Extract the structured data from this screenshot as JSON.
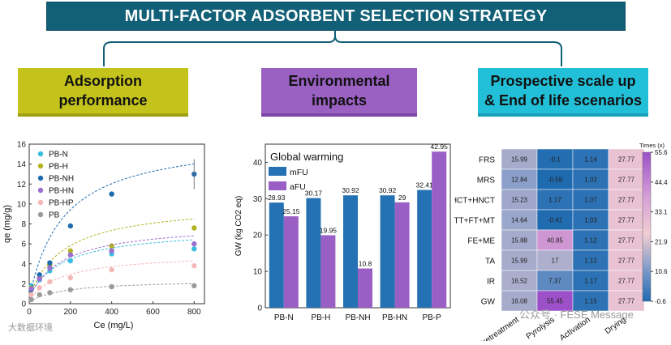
{
  "header": {
    "title": "MULTI-FACTOR ADSORBENT SELECTION STRATEGY",
    "boxes": [
      {
        "line1": "Adsorption",
        "line2": "performance"
      },
      {
        "line1": "Environmental",
        "line2": "impacts"
      },
      {
        "line1": "Prospective scale up",
        "line2": "& End of life scenarios"
      }
    ]
  },
  "colors": {
    "banner": "#126077",
    "box_yellow": "#c4c31c",
    "box_purple": "#9a61c3",
    "box_cyan": "#22c0d8",
    "bar_mfu": "#2472b3",
    "bar_afu": "#9a5fc4"
  },
  "chart_data": [
    {
      "type": "scatter",
      "title": "",
      "xlabel": "Ce (mg/L)",
      "ylabel": "qe (mg/g)",
      "xlim": [
        0,
        850
      ],
      "ylim": [
        0,
        16
      ],
      "xticks": [
        "0",
        "200",
        "400",
        "600",
        "800"
      ],
      "yticks": [
        "0",
        "2",
        "4",
        "6",
        "8",
        "10",
        "12",
        "14",
        "16"
      ],
      "legend": "top-left",
      "series": [
        {
          "name": "PB-N",
          "color": "#3bbde0",
          "x": [
            10,
            50,
            100,
            200,
            400,
            800
          ],
          "y": [
            1.8,
            2.4,
            3.3,
            4.3,
            5.0,
            5.5
          ]
        },
        {
          "name": "PB-H",
          "color": "#b3b321",
          "x": [
            10,
            50,
            100,
            200,
            400,
            800
          ],
          "y": [
            1.6,
            2.6,
            3.9,
            5.3,
            5.8,
            7.6
          ]
        },
        {
          "name": "PB-NH",
          "color": "#1f6bb0",
          "x": [
            10,
            50,
            100,
            200,
            400,
            800
          ],
          "y": [
            1.4,
            2.9,
            4.1,
            7.8,
            11.0,
            13.0
          ]
        },
        {
          "name": "PB-HN",
          "color": "#9a6fd0",
          "x": [
            10,
            50,
            100,
            200,
            400,
            800
          ],
          "y": [
            1.5,
            2.5,
            3.6,
            4.9,
            5.3,
            6.0
          ]
        },
        {
          "name": "PB-HP",
          "color": "#f4b8b8",
          "x": [
            10,
            50,
            100,
            200,
            400,
            800
          ],
          "y": [
            0.9,
            1.6,
            2.2,
            2.6,
            3.4,
            3.8
          ]
        },
        {
          "name": "PB",
          "color": "#9a9a9a",
          "x": [
            10,
            50,
            100,
            200,
            400,
            800
          ],
          "y": [
            0.4,
            0.9,
            1.1,
            1.4,
            1.7,
            1.8
          ]
        }
      ]
    },
    {
      "type": "bar",
      "title": "Global warming",
      "ylabel": "GW (kg CO2 eq)",
      "xlabel": "",
      "ylim": [
        0,
        45
      ],
      "yticks": [
        "0",
        "10",
        "20",
        "30",
        "40"
      ],
      "categories": [
        "PB-N",
        "PB-H",
        "PB-NH",
        "PB-HN",
        "PB-P"
      ],
      "series": [
        {
          "name": "mFU",
          "values": [
            28.93,
            30.17,
            30.92,
            30.92,
            32.41
          ],
          "labels": [
            "28.93",
            "30.17",
            "30.92",
            "30.92",
            "32.41"
          ]
        },
        {
          "name": "aFU",
          "values": [
            25.15,
            19.95,
            10.8,
            29,
            42.95
          ],
          "labels": [
            "25.15",
            "19.95",
            "10.8",
            "29",
            "42.95"
          ]
        }
      ]
    },
    {
      "type": "heatmap",
      "title": "",
      "columns": [
        "Pretreatment",
        "Pyrolysis",
        "Activation",
        "Drying"
      ],
      "rows": [
        "FRS",
        "MRS",
        "HCT+HNCT",
        "TT+FT+MT",
        "FE+ME",
        "TA",
        "IR",
        "GW"
      ],
      "values": [
        [
          15.99,
          -0.1,
          1.14,
          27.77
        ],
        [
          12.84,
          -0.59,
          1.02,
          27.77
        ],
        [
          15.23,
          1.17,
          1.07,
          27.77
        ],
        [
          14.64,
          -0.41,
          1.03,
          27.77
        ],
        [
          15.88,
          40.85,
          1.12,
          27.77
        ],
        [
          15.99,
          17,
          1.12,
          27.77
        ],
        [
          16.52,
          7.37,
          1.17,
          27.77
        ],
        [
          16.08,
          55.45,
          1.15,
          27.77
        ]
      ],
      "labels": [
        [
          "15.99",
          "-0.1",
          "1.14",
          "27.77"
        ],
        [
          "12.84",
          "-0.59",
          "1.02",
          "27.77"
        ],
        [
          "15.23",
          "1.17",
          "1.07",
          "27.77"
        ],
        [
          "14.64",
          "-0.41",
          "1.03",
          "27.77"
        ],
        [
          "15.88",
          "40.85",
          "1.12",
          "27.77"
        ],
        [
          "15.99",
          "17",
          "1.12",
          "27.77"
        ],
        [
          "16.52",
          "7.37",
          "1.17",
          "27.77"
        ],
        [
          "16.08",
          "55.45",
          "1.15",
          "27.77"
        ]
      ],
      "colorbar": {
        "title": "Times (x)",
        "min": -0.6,
        "max": 55.6,
        "ticks": [
          "55.6",
          "44.4",
          "33.1",
          "21.9",
          "10.6",
          "-0.6"
        ]
      }
    }
  ],
  "watermarks": {
    "left": "大数据环境",
    "right": "公众号 · FESE Message"
  }
}
